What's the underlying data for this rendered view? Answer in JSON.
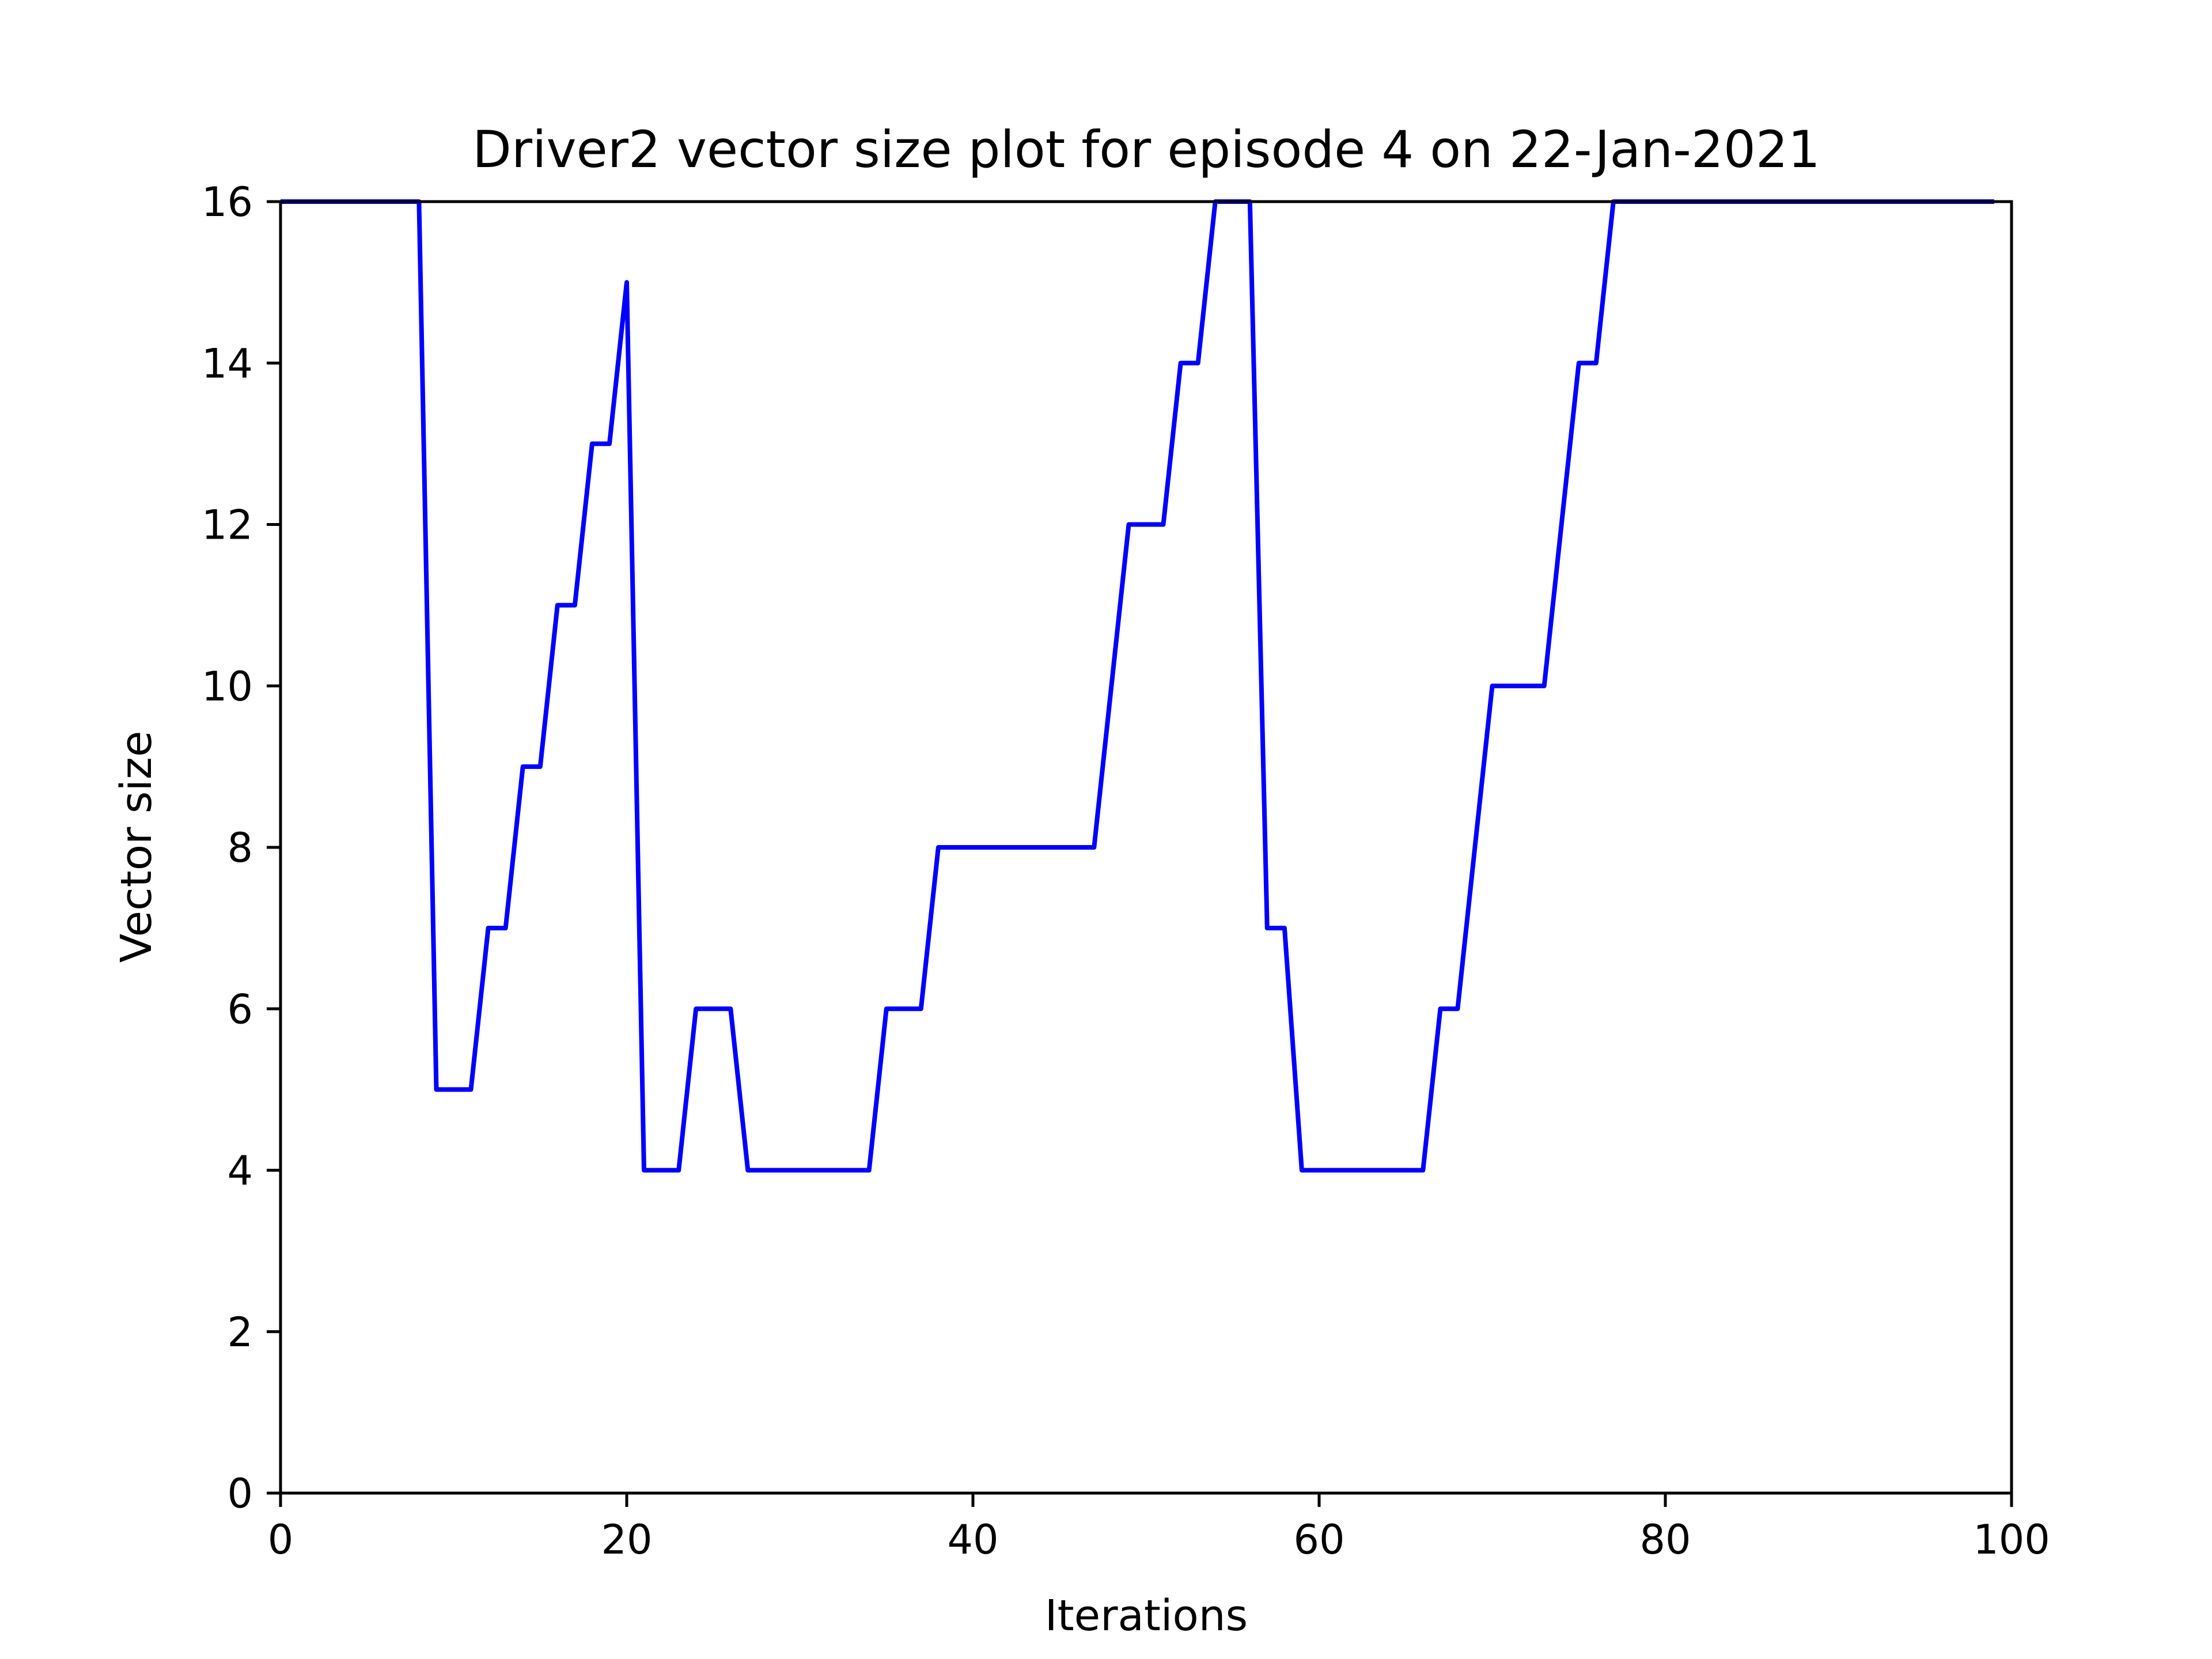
{
  "chart_data": {
    "type": "line",
    "title": "Driver2 vector size plot for episode 4 on 22-Jan-2021",
    "xlabel": "Iterations",
    "ylabel": "Vector size",
    "xlim": [
      0,
      100
    ],
    "ylim": [
      0,
      16
    ],
    "xticks": [
      0,
      20,
      40,
      60,
      80,
      100
    ],
    "yticks": [
      0,
      2,
      4,
      6,
      8,
      10,
      12,
      14,
      16
    ],
    "grid": false,
    "series": [
      {
        "color": "#0000ff",
        "x": [
          0,
          1,
          2,
          3,
          4,
          5,
          6,
          7,
          8,
          9,
          10,
          11,
          12,
          13,
          14,
          15,
          16,
          17,
          18,
          19,
          20,
          21,
          22,
          23,
          24,
          25,
          26,
          27,
          28,
          29,
          30,
          31,
          32,
          33,
          34,
          35,
          36,
          37,
          38,
          39,
          40,
          41,
          42,
          43,
          44,
          45,
          46,
          47,
          48,
          49,
          50,
          51,
          52,
          53,
          54,
          55,
          56,
          57,
          58,
          59,
          60,
          61,
          62,
          63,
          64,
          65,
          66,
          67,
          68,
          69,
          70,
          71,
          72,
          73,
          74,
          75,
          76,
          77,
          78,
          79,
          80,
          81,
          82,
          83,
          84,
          85,
          86,
          87,
          88,
          89,
          90,
          91,
          92,
          93,
          94,
          95,
          96,
          97,
          98,
          99
        ],
        "y": [
          16,
          16,
          16,
          16,
          16,
          16,
          16,
          16,
          16,
          5,
          5,
          5,
          7,
          7,
          9,
          9,
          11,
          11,
          13,
          13,
          15,
          4,
          4,
          4,
          6,
          6,
          6,
          4,
          4,
          4,
          4,
          4,
          4,
          4,
          4,
          6,
          6,
          6,
          8,
          8,
          8,
          8,
          8,
          8,
          8,
          8,
          8,
          8,
          10,
          12,
          12,
          12,
          14,
          14,
          16,
          16,
          16,
          7,
          7,
          4,
          4,
          4,
          4,
          4,
          4,
          4,
          4,
          6,
          6,
          8,
          10,
          10,
          10,
          10,
          12,
          14,
          14,
          16,
          16,
          16,
          16,
          16,
          16,
          16,
          16,
          16,
          16,
          16,
          16,
          16,
          16,
          16,
          16,
          16,
          16,
          16,
          16,
          16,
          16,
          16
        ]
      }
    ]
  }
}
